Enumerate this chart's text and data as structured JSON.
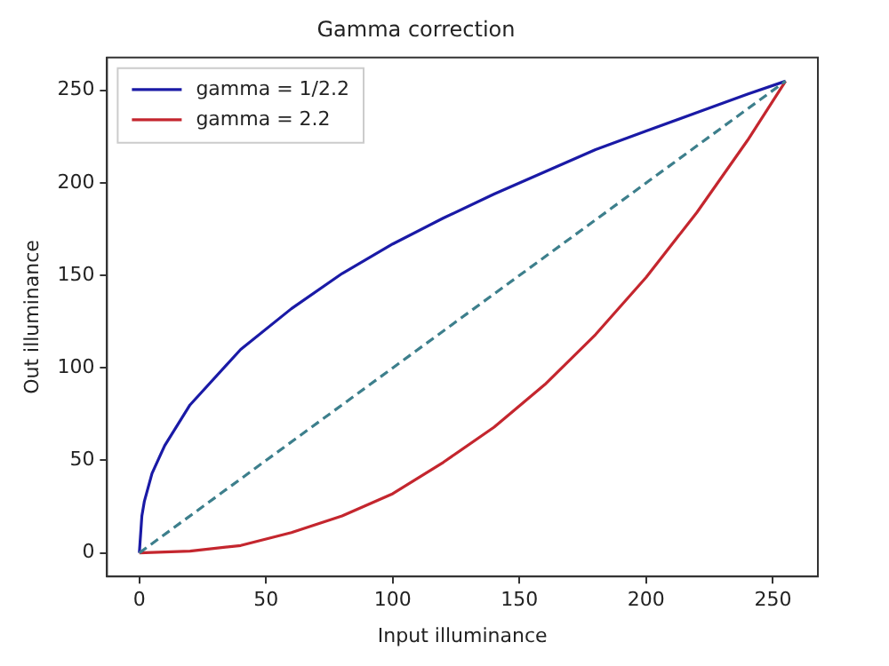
{
  "chart_data": {
    "type": "line",
    "title": "Gamma correction",
    "xlabel": "Input illuminance",
    "ylabel": "Out illuminance",
    "xlim": [
      -12.75,
      267.75
    ],
    "xticks": [
      0,
      50,
      100,
      150,
      200,
      250
    ],
    "ylim": [
      -12.75,
      267.75
    ],
    "yticks": [
      0,
      50,
      100,
      150,
      200,
      250
    ],
    "grid": false,
    "legend": "top left",
    "marker": "none",
    "series": [
      {
        "name": "gamma = 1/2.2",
        "color": "#1a1aa6",
        "x": [
          0,
          1,
          2,
          5,
          10,
          20,
          40,
          60,
          80,
          100,
          120,
          140,
          160,
          180,
          200,
          220,
          240,
          255
        ],
        "values": [
          0,
          20,
          28,
          43,
          58,
          80,
          110,
          132,
          151,
          167,
          181,
          194,
          206,
          218,
          228,
          238,
          248,
          255
        ]
      },
      {
        "name": "gamma = 2.2",
        "color": "#c4262e",
        "x": [
          0,
          20,
          40,
          60,
          80,
          100,
          120,
          140,
          160,
          180,
          200,
          220,
          240,
          255
        ],
        "values": [
          0,
          1,
          4,
          11,
          20,
          32,
          49,
          68,
          91,
          118,
          149,
          184,
          223,
          255
        ]
      },
      {
        "color": "#3d7f8c",
        "line_style": "dashed",
        "x": [
          0,
          255
        ],
        "values": [
          0,
          255
        ]
      }
    ]
  }
}
